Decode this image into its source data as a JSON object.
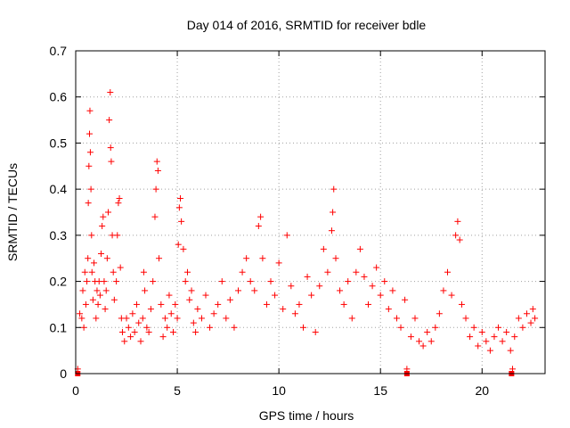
{
  "chart_data": {
    "type": "scatter",
    "title": "Day 014 of 2016, SRMTID for receiver bdle",
    "xlabel": "GPS time / hours",
    "ylabel": "SRMTID / TECUs",
    "xlim": [
      0,
      23.1
    ],
    "ylim": [
      0,
      0.7
    ],
    "xticks": [
      0,
      5,
      10,
      15,
      20
    ],
    "yticks": [
      0,
      0.1,
      0.2,
      0.3,
      0.4,
      0.5,
      0.6,
      0.7
    ],
    "ytick_labels": [
      "0",
      "0.1",
      "0.2",
      "0.3",
      "0.4",
      "0.5",
      "0.6",
      "0.7"
    ],
    "grid": true,
    "marker": "+",
    "color": "#ff0000",
    "series": [
      {
        "name": "SRMTID",
        "points": [
          [
            0.1,
            0.01
          ],
          [
            0.2,
            0.13
          ],
          [
            0.3,
            0.12
          ],
          [
            0.35,
            0.18
          ],
          [
            0.4,
            0.1
          ],
          [
            0.45,
            0.22
          ],
          [
            0.5,
            0.15
          ],
          [
            0.55,
            0.2
          ],
          [
            0.6,
            0.25
          ],
          [
            0.62,
            0.37
          ],
          [
            0.65,
            0.45
          ],
          [
            0.68,
            0.52
          ],
          [
            0.7,
            0.57
          ],
          [
            0.72,
            0.48
          ],
          [
            0.75,
            0.4
          ],
          [
            0.78,
            0.3
          ],
          [
            0.8,
            0.22
          ],
          [
            0.85,
            0.16
          ],
          [
            0.9,
            0.24
          ],
          [
            0.95,
            0.2
          ],
          [
            1.0,
            0.12
          ],
          [
            1.05,
            0.18
          ],
          [
            1.1,
            0.15
          ],
          [
            1.15,
            0.2
          ],
          [
            1.2,
            0.17
          ],
          [
            1.25,
            0.26
          ],
          [
            1.3,
            0.32
          ],
          [
            1.35,
            0.34
          ],
          [
            1.4,
            0.2
          ],
          [
            1.45,
            0.14
          ],
          [
            1.5,
            0.18
          ],
          [
            1.55,
            0.25
          ],
          [
            1.6,
            0.35
          ],
          [
            1.65,
            0.55
          ],
          [
            1.7,
            0.61
          ],
          [
            1.72,
            0.49
          ],
          [
            1.75,
            0.46
          ],
          [
            1.8,
            0.3
          ],
          [
            1.85,
            0.22
          ],
          [
            1.9,
            0.16
          ],
          [
            2.0,
            0.2
          ],
          [
            2.05,
            0.3
          ],
          [
            2.1,
            0.37
          ],
          [
            2.15,
            0.38
          ],
          [
            2.2,
            0.23
          ],
          [
            2.25,
            0.12
          ],
          [
            2.3,
            0.09
          ],
          [
            2.4,
            0.07
          ],
          [
            2.5,
            0.12
          ],
          [
            2.6,
            0.1
          ],
          [
            2.7,
            0.08
          ],
          [
            2.8,
            0.13
          ],
          [
            2.9,
            0.09
          ],
          [
            3.0,
            0.15
          ],
          [
            3.1,
            0.11
          ],
          [
            3.2,
            0.07
          ],
          [
            3.3,
            0.12
          ],
          [
            3.35,
            0.22
          ],
          [
            3.4,
            0.18
          ],
          [
            3.5,
            0.1
          ],
          [
            3.6,
            0.09
          ],
          [
            3.7,
            0.14
          ],
          [
            3.8,
            0.2
          ],
          [
            3.9,
            0.34
          ],
          [
            3.95,
            0.4
          ],
          [
            4.0,
            0.46
          ],
          [
            4.05,
            0.44
          ],
          [
            4.1,
            0.25
          ],
          [
            4.2,
            0.15
          ],
          [
            4.3,
            0.08
          ],
          [
            4.4,
            0.12
          ],
          [
            4.5,
            0.1
          ],
          [
            4.6,
            0.17
          ],
          [
            4.7,
            0.13
          ],
          [
            4.8,
            0.09
          ],
          [
            4.9,
            0.15
          ],
          [
            5.0,
            0.12
          ],
          [
            5.05,
            0.28
          ],
          [
            5.1,
            0.36
          ],
          [
            5.15,
            0.38
          ],
          [
            5.2,
            0.33
          ],
          [
            5.3,
            0.27
          ],
          [
            5.4,
            0.2
          ],
          [
            5.5,
            0.22
          ],
          [
            5.6,
            0.16
          ],
          [
            5.7,
            0.18
          ],
          [
            5.8,
            0.11
          ],
          [
            5.9,
            0.09
          ],
          [
            6.0,
            0.14
          ],
          [
            6.2,
            0.12
          ],
          [
            6.4,
            0.17
          ],
          [
            6.6,
            0.1
          ],
          [
            6.8,
            0.13
          ],
          [
            7.0,
            0.15
          ],
          [
            7.2,
            0.2
          ],
          [
            7.4,
            0.12
          ],
          [
            7.6,
            0.16
          ],
          [
            7.8,
            0.1
          ],
          [
            8.0,
            0.18
          ],
          [
            8.2,
            0.22
          ],
          [
            8.4,
            0.25
          ],
          [
            8.6,
            0.2
          ],
          [
            8.8,
            0.18
          ],
          [
            9.0,
            0.32
          ],
          [
            9.1,
            0.34
          ],
          [
            9.2,
            0.25
          ],
          [
            9.4,
            0.15
          ],
          [
            9.6,
            0.2
          ],
          [
            9.8,
            0.17
          ],
          [
            10.0,
            0.24
          ],
          [
            10.2,
            0.14
          ],
          [
            10.4,
            0.3
          ],
          [
            10.6,
            0.19
          ],
          [
            10.8,
            0.13
          ],
          [
            11.0,
            0.15
          ],
          [
            11.2,
            0.1
          ],
          [
            11.4,
            0.21
          ],
          [
            11.6,
            0.17
          ],
          [
            11.8,
            0.09
          ],
          [
            12.0,
            0.19
          ],
          [
            12.2,
            0.27
          ],
          [
            12.4,
            0.22
          ],
          [
            12.6,
            0.31
          ],
          [
            12.65,
            0.35
          ],
          [
            12.7,
            0.4
          ],
          [
            12.8,
            0.25
          ],
          [
            13.0,
            0.18
          ],
          [
            13.2,
            0.15
          ],
          [
            13.4,
            0.2
          ],
          [
            13.6,
            0.12
          ],
          [
            13.8,
            0.22
          ],
          [
            14.0,
            0.27
          ],
          [
            14.2,
            0.21
          ],
          [
            14.4,
            0.15
          ],
          [
            14.6,
            0.19
          ],
          [
            14.8,
            0.23
          ],
          [
            15.0,
            0.17
          ],
          [
            15.2,
            0.2
          ],
          [
            15.4,
            0.14
          ],
          [
            15.6,
            0.18
          ],
          [
            15.8,
            0.12
          ],
          [
            16.0,
            0.1
          ],
          [
            16.2,
            0.16
          ],
          [
            16.3,
            0.01
          ],
          [
            16.5,
            0.08
          ],
          [
            16.7,
            0.12
          ],
          [
            16.9,
            0.07
          ],
          [
            17.1,
            0.06
          ],
          [
            17.3,
            0.09
          ],
          [
            17.5,
            0.07
          ],
          [
            17.7,
            0.1
          ],
          [
            17.9,
            0.13
          ],
          [
            18.1,
            0.18
          ],
          [
            18.3,
            0.22
          ],
          [
            18.5,
            0.17
          ],
          [
            18.7,
            0.3
          ],
          [
            18.8,
            0.33
          ],
          [
            18.9,
            0.29
          ],
          [
            19.0,
            0.15
          ],
          [
            19.2,
            0.12
          ],
          [
            19.4,
            0.08
          ],
          [
            19.6,
            0.1
          ],
          [
            19.8,
            0.06
          ],
          [
            20.0,
            0.09
          ],
          [
            20.2,
            0.07
          ],
          [
            20.4,
            0.05
          ],
          [
            20.6,
            0.08
          ],
          [
            20.8,
            0.1
          ],
          [
            21.0,
            0.07
          ],
          [
            21.2,
            0.09
          ],
          [
            21.4,
            0.05
          ],
          [
            21.5,
            0.01
          ],
          [
            21.6,
            0.08
          ],
          [
            21.8,
            0.12
          ],
          [
            22.0,
            0.1
          ],
          [
            22.2,
            0.13
          ],
          [
            22.4,
            0.11
          ],
          [
            22.5,
            0.14
          ],
          [
            22.6,
            0.12
          ]
        ]
      }
    ],
    "flagged_points": [
      [
        0.1,
        0.0
      ],
      [
        16.3,
        0.0
      ],
      [
        21.45,
        0.0
      ]
    ]
  }
}
